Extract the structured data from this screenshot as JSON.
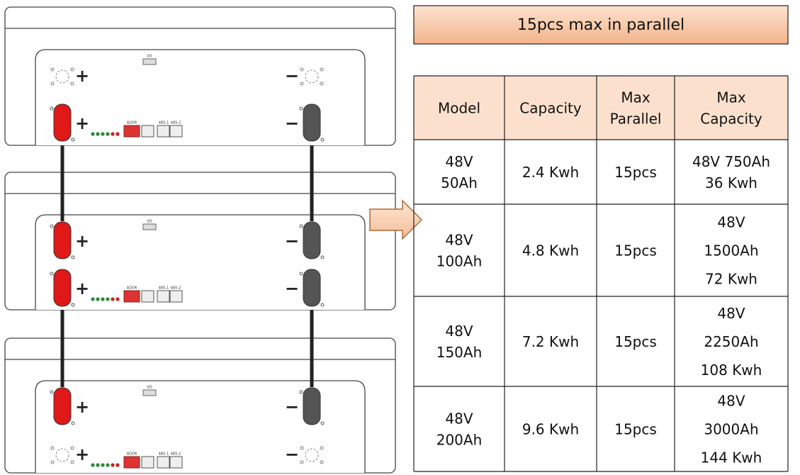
{
  "banner": "15pcs max in parallel",
  "table": {
    "header": [
      [
        "Model"
      ],
      [
        "Capacity"
      ],
      [
        "Max",
        "Parallel"
      ],
      [
        "Max",
        "Capacity"
      ]
    ],
    "rows": [
      [
        [
          "48V",
          "50Ah"
        ],
        [
          "2.4 Kwh"
        ],
        [
          "15pcs"
        ],
        [
          "48V 750Ah",
          "36 Kwh"
        ]
      ],
      [
        [
          "48V",
          "100Ah"
        ],
        [
          "4.8 Kwh"
        ],
        [
          "15pcs"
        ],
        [
          "48V",
          "1500Ah",
          "72 Kwh"
        ]
      ],
      [
        [
          "48V",
          "150Ah"
        ],
        [
          "7.2 Kwh"
        ],
        [
          "15pcs"
        ],
        [
          "48V",
          "2250Ah",
          "108 Kwh"
        ]
      ],
      [
        [
          "48V",
          "200Ah"
        ],
        [
          "9.6 Kwh"
        ],
        [
          "15pcs"
        ],
        [
          "48V",
          "3000Ah",
          "144 Kwh"
        ]
      ]
    ]
  },
  "battery_labels": {
    "plus": "+",
    "minus": "−",
    "addr": "ADDR",
    "port1": "485-1",
    "port2": "485-2",
    "io": "I/O"
  }
}
